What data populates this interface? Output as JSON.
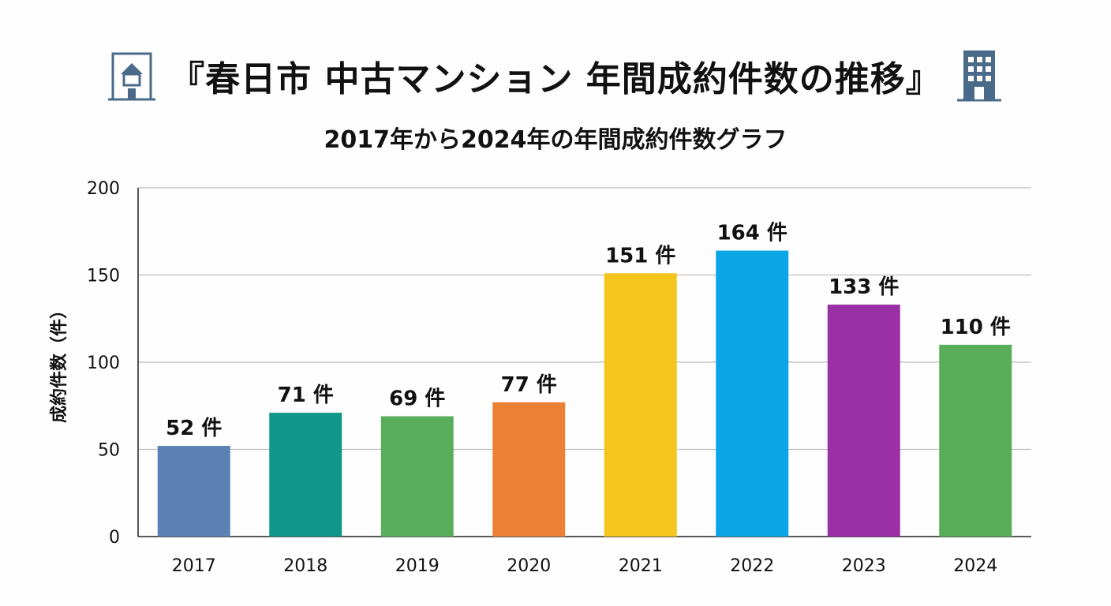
{
  "title": "『春日市 中古マンション 年間成約件数の推移』",
  "subtitle": "2017年から2024年の年間成約件数グラフ",
  "icons": {
    "left": "house-building-icon",
    "right": "office-building-icon"
  },
  "colors": {
    "icon": "#4a6a8a",
    "grid": "#bfbfbf",
    "axis": "#222222"
  },
  "chart_data": {
    "type": "bar",
    "categories": [
      "2017",
      "2018",
      "2019",
      "2020",
      "2021",
      "2022",
      "2023",
      "2024"
    ],
    "values": [
      52,
      71,
      69,
      77,
      151,
      164,
      133,
      110
    ],
    "data_labels": [
      "52 件",
      "71 件",
      "69 件",
      "77 件",
      "151 件",
      "164 件",
      "133 件",
      "110 件"
    ],
    "bar_colors": [
      "#5a80b4",
      "#11978a",
      "#5aad5a",
      "#ec8135",
      "#f5c51e",
      "#0aa6e6",
      "#9a2fa6",
      "#58ae58"
    ],
    "ylabel": "成約件数（件）",
    "xlabel": "",
    "ylim": [
      0,
      200
    ],
    "yticks": [
      "0",
      "50",
      "100",
      "150",
      "200"
    ],
    "grid": true
  }
}
